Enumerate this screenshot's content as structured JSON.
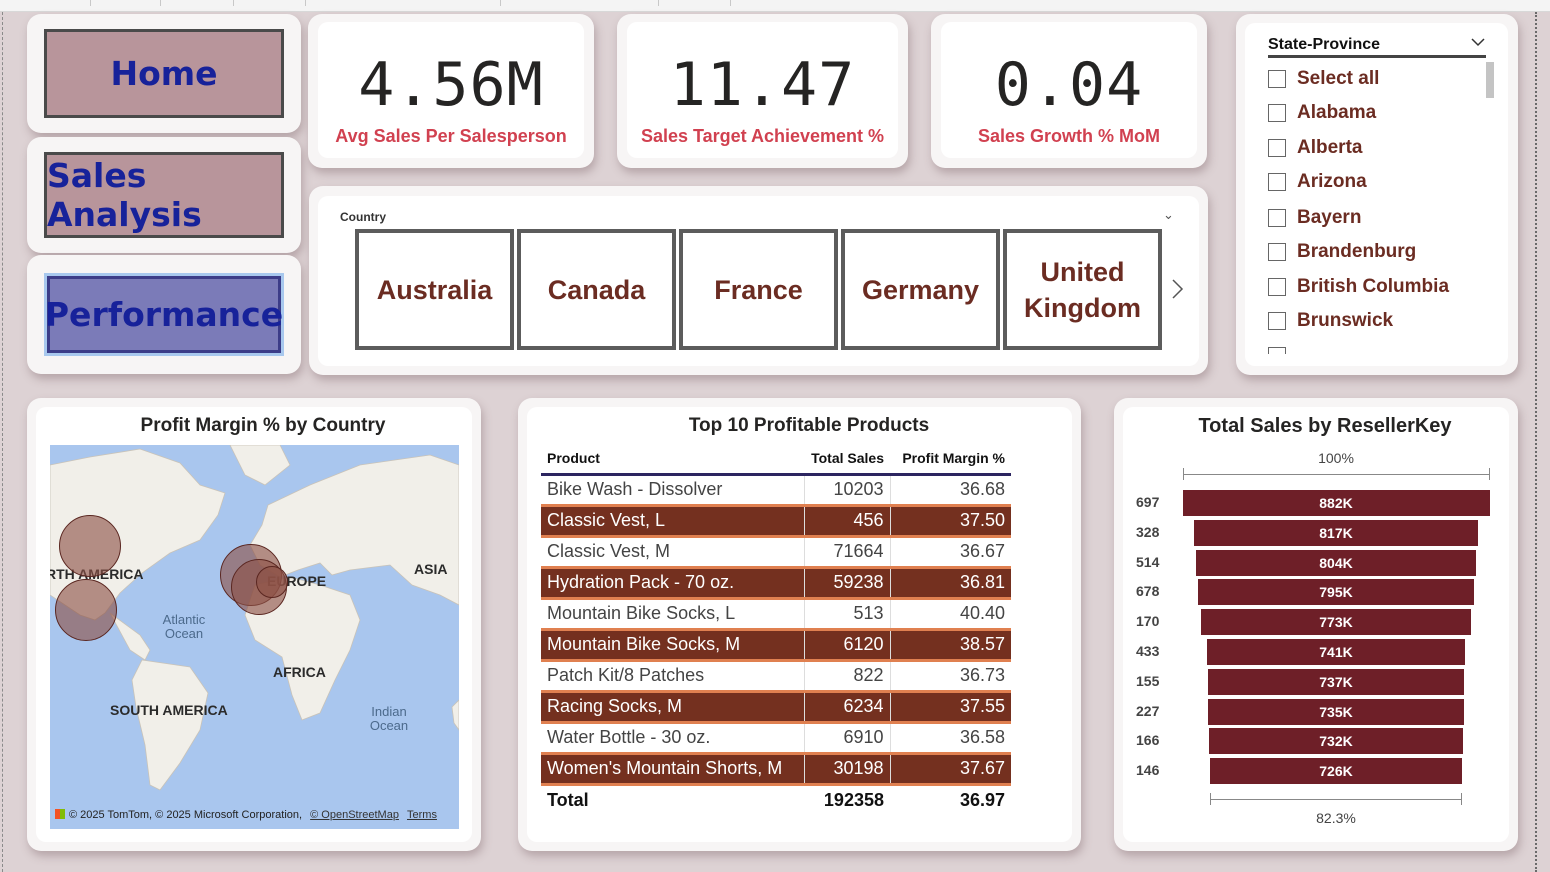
{
  "nav": {
    "home": "Home",
    "sales_analysis": "Sales Analysis",
    "performance": "Performance"
  },
  "kpis": [
    {
      "value": "4.56M",
      "label": "Avg Sales Per Salesperson"
    },
    {
      "value": "11.47",
      "label": "Sales Target Achievement %"
    },
    {
      "value": "0.04",
      "label": "Sales Growth % MoM"
    }
  ],
  "country_slicer": {
    "title": "Country",
    "tiles": [
      "Australia",
      "Canada",
      "France",
      "Germany",
      "United Kingdom"
    ]
  },
  "state_slicer": {
    "title": "State-Province",
    "items": [
      "Select all",
      "Alabama",
      "Alberta",
      "Arizona",
      "Bayern",
      "Brandenburg",
      "British Columbia",
      "Brunswick"
    ]
  },
  "map_visual": {
    "title": "Profit Margin % by Country",
    "labels": {
      "north_america": "RTH AMERICA",
      "europe": "EUROPE",
      "asia": "ASIA",
      "africa": "AFRICA",
      "south_america": "SOUTH AMERICA",
      "atlantic": "Atlantic Ocean",
      "indian": "Indian Ocean"
    },
    "copyright": "© 2025 TomTom, © 2025 Microsoft Corporation,",
    "osm_link": "© OpenStreetMap",
    "terms_link": "Terms"
  },
  "products_table": {
    "title": "Top 10 Profitable Products",
    "columns": [
      "Product",
      "Total Sales",
      "Profit Margin %"
    ],
    "rows": [
      [
        "Bike Wash - Dissolver",
        "10203",
        "36.68"
      ],
      [
        "Classic Vest, L",
        "456",
        "37.50"
      ],
      [
        "Classic Vest, M",
        "71664",
        "36.67"
      ],
      [
        "Hydration Pack - 70 oz.",
        "59238",
        "36.81"
      ],
      [
        "Mountain Bike Socks, L",
        "513",
        "40.40"
      ],
      [
        "Mountain Bike Socks, M",
        "6120",
        "38.57"
      ],
      [
        "Patch Kit/8 Patches",
        "822",
        "36.73"
      ],
      [
        "Racing Socks, M",
        "6234",
        "37.55"
      ],
      [
        "Water Bottle - 30 oz.",
        "6910",
        "36.58"
      ],
      [
        "Women's Mountain Shorts, M",
        "30198",
        "37.67"
      ]
    ],
    "total": [
      "Total",
      "192358",
      "36.97"
    ]
  },
  "chart_data": {
    "type": "bar",
    "title": "Total Sales by ResellerKey",
    "top_label": "100%",
    "bottom_label": "82.3%",
    "categories": [
      "697",
      "328",
      "514",
      "678",
      "170",
      "433",
      "155",
      "227",
      "166",
      "146"
    ],
    "values": [
      882,
      817,
      804,
      795,
      773,
      741,
      737,
      735,
      732,
      726
    ],
    "value_labels": [
      "882K",
      "817K",
      "804K",
      "795K",
      "773K",
      "741K",
      "737K",
      "735K",
      "732K",
      "726K"
    ],
    "max_value": 882
  },
  "colors": {
    "accent_red": "#d14150",
    "brand_brown": "#6b2c22",
    "bar": "#6e1f28",
    "nav_blue": "#17229a"
  }
}
